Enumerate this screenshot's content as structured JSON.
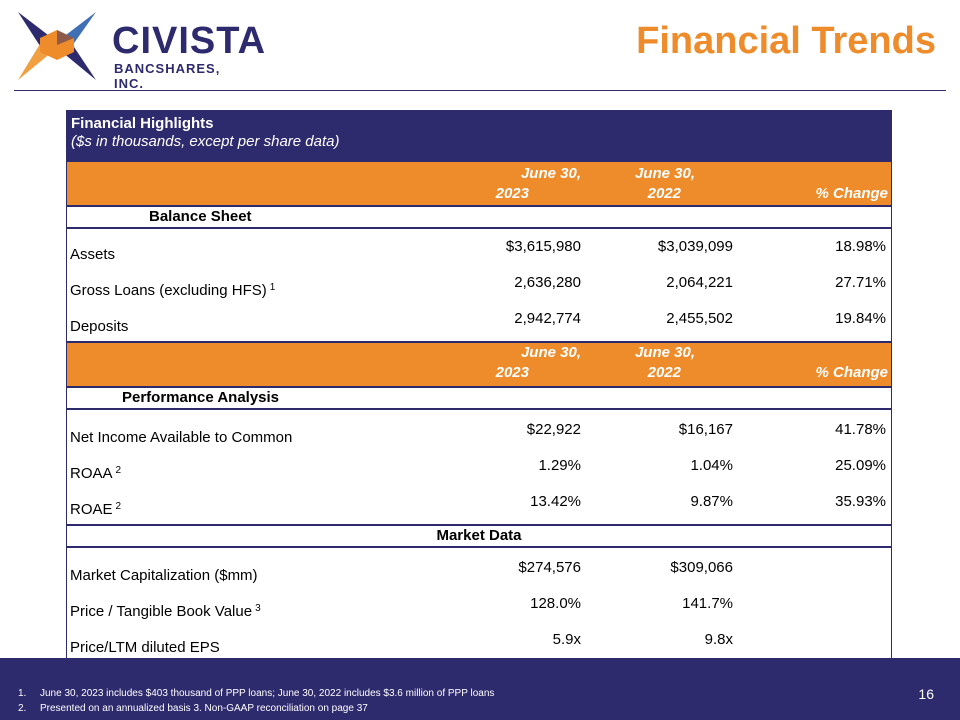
{
  "brand": {
    "name": "CIVISTA",
    "subtitle": "BANCSHARES, INC.",
    "colors": {
      "navy": "#2e2a6e",
      "orange": "#ee8b2a",
      "lightblue": "#3f6fb5"
    }
  },
  "page_title": "Financial Trends",
  "table": {
    "title": "Financial Highlights",
    "subtitle": "($s in thousands, except per share data)",
    "col_headers": [
      {
        "line1": "June 30,",
        "line2": "2023"
      },
      {
        "line1": "June 30,",
        "line2": "2022"
      },
      {
        "label": "% Change"
      }
    ],
    "sections": [
      {
        "name": "Balance Sheet",
        "rows": [
          {
            "label": "Assets",
            "sup": "",
            "v2023": "$3,615,980",
            "v2022": "$3,039,099",
            "change": "18.98%"
          },
          {
            "label": "Gross Loans (excluding HFS)",
            "sup": "1",
            "v2023": "2,636,280",
            "v2022": "2,064,221",
            "change": "27.71%"
          },
          {
            "label": "Deposits",
            "sup": "",
            "v2023": "2,942,774",
            "v2022": "2,455,502",
            "change": "19.84%"
          }
        ]
      },
      {
        "name": "Performance Analysis",
        "rows": [
          {
            "label": "Net Income Available to Common",
            "sup": "",
            "v2023": "$22,922",
            "v2022": "$16,167",
            "change": "41.78%"
          },
          {
            "label": "ROAA",
            "sup": "2",
            "v2023": "1.29%",
            "v2022": "1.04%",
            "change": "25.09%"
          },
          {
            "label": "ROAE",
            "sup": "2",
            "v2023": "13.42%",
            "v2022": "9.87%",
            "change": "35.93%"
          }
        ]
      },
      {
        "name": "Market Data",
        "rows": [
          {
            "label": "Market Capitalization ($mm)",
            "sup": "",
            "v2023": "$274,576",
            "v2022": "$309,066",
            "change": ""
          },
          {
            "label": "Price / Tangible Book Value",
            "sup": "3",
            "v2023": "128.0%",
            "v2022": "141.7%",
            "change": ""
          },
          {
            "label": "Price/LTM diluted EPS",
            "sup": "",
            "v2023": "5.9x",
            "v2022": "9.8x",
            "change": ""
          }
        ]
      }
    ]
  },
  "footnotes": [
    {
      "num": "1.",
      "text": "June 30, 2023 includes $403 thousand of PPP loans; June 30, 2022 includes $3.6 million of PPP loans"
    },
    {
      "num": "2.",
      "text": "Presented on an annualized basis  3. Non-GAAP reconciliation on page 37"
    }
  ],
  "page_number": "16"
}
